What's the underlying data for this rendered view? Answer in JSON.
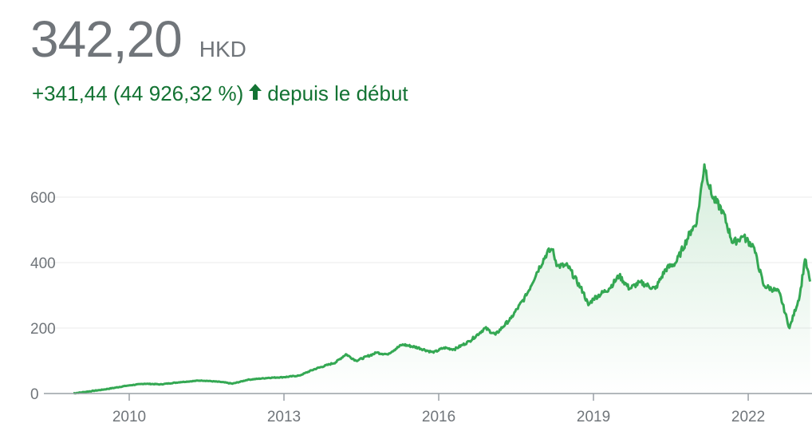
{
  "header": {
    "price": "342,20",
    "currency": "HKD",
    "change": "+341,44 (44 926,32 %)",
    "change_icon": "arrow-up-icon",
    "change_suffix": "depuis le début"
  },
  "colors": {
    "line": "#34a853",
    "positive_text": "#137333",
    "axis_text": "#70757a"
  },
  "chart_data": {
    "type": "area",
    "xlim": [
      2008.9,
      2023.2
    ],
    "ylim": [
      0,
      720
    ],
    "x_ticks": [
      "2010",
      "2013",
      "2016",
      "2019",
      "2022"
    ],
    "y_ticks": [
      "0",
      "200",
      "400",
      "600"
    ],
    "grid": true,
    "x": [
      2008.92,
      2009.0,
      2009.5,
      2010.0,
      2010.3,
      2010.6,
      2011.0,
      2011.4,
      2011.8,
      2012.0,
      2012.3,
      2012.7,
      2013.0,
      2013.3,
      2013.6,
      2014.0,
      2014.2,
      2014.4,
      2014.8,
      2015.0,
      2015.3,
      2015.6,
      2015.9,
      2016.1,
      2016.3,
      2016.6,
      2016.9,
      2017.1,
      2017.4,
      2017.7,
      2017.9,
      2018.1,
      2018.2,
      2018.3,
      2018.5,
      2018.8,
      2018.9,
      2019.0,
      2019.3,
      2019.5,
      2019.7,
      2019.9,
      2020.2,
      2020.4,
      2020.6,
      2020.9,
      2021.0,
      2021.15,
      2021.3,
      2021.5,
      2021.7,
      2021.9,
      2022.1,
      2022.3,
      2022.6,
      2022.8,
      2023.0,
      2023.1,
      2023.2
    ],
    "y": [
      0.76,
      2,
      12,
      25,
      30,
      28,
      35,
      40,
      35,
      30,
      42,
      48,
      50,
      55,
      75,
      95,
      120,
      100,
      125,
      120,
      150,
      140,
      125,
      140,
      135,
      160,
      200,
      180,
      230,
      300,
      370,
      430,
      440,
      390,
      390,
      310,
      270,
      290,
      320,
      360,
      320,
      340,
      320,
      380,
      400,
      500,
      520,
      700,
      600,
      560,
      460,
      480,
      450,
      330,
      310,
      200,
      300,
      410,
      342.2
    ]
  }
}
